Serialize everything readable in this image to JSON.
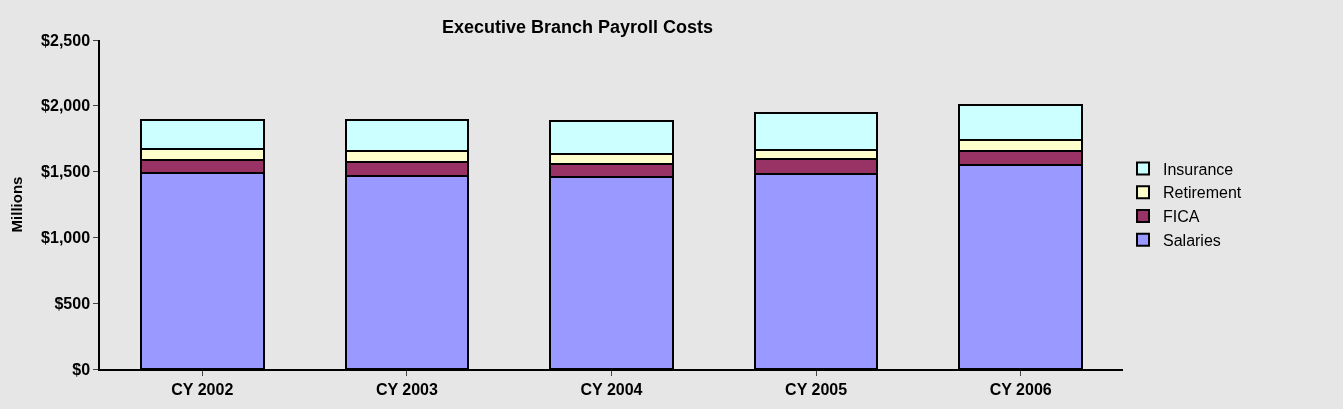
{
  "chart_data": {
    "type": "bar",
    "title": "Executive Branch Payroll Costs",
    "ylabel": "Millions",
    "categories": [
      "CY 2002",
      "CY 2003",
      "CY 2004",
      "CY 2005",
      "CY 2006"
    ],
    "stacked": true,
    "series": [
      {
        "name": "Salaries",
        "color": "#9999ff",
        "values": [
          1490,
          1470,
          1460,
          1485,
          1550
        ]
      },
      {
        "name": "FICA",
        "color": "#993366",
        "values": [
          100,
          103,
          100,
          109,
          110
        ]
      },
      {
        "name": "Retirement",
        "color": "#ffffcc",
        "values": [
          80,
          82,
          75,
          73,
          80
        ]
      },
      {
        "name": "Insurance",
        "color": "#ccffff",
        "values": [
          225,
          236,
          246,
          278,
          265
        ]
      }
    ],
    "ylim": [
      0,
      2500
    ],
    "yticks": [
      {
        "value": 0,
        "label": "$0"
      },
      {
        "value": 500,
        "label": "$500"
      },
      {
        "value": 1000,
        "label": "$1,000"
      },
      {
        "value": 1500,
        "label": "$1,500"
      },
      {
        "value": 2000,
        "label": "$2,000"
      },
      {
        "value": 2500,
        "label": "$2,500"
      }
    ],
    "legend": "right",
    "grid": false
  }
}
